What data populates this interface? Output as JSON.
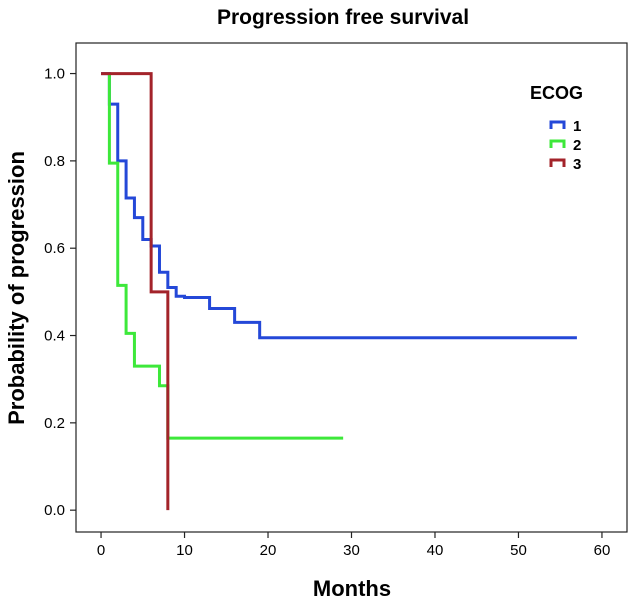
{
  "chart_data": {
    "type": "line",
    "step": true,
    "title": "Progression free survival",
    "xlabel": "Months",
    "ylabel": "Probability of progression",
    "xlim": [
      -3,
      63
    ],
    "ylim": [
      -0.05,
      1.07
    ],
    "x_ticks": [
      0,
      10,
      20,
      30,
      40,
      50,
      60
    ],
    "y_ticks": [
      0.0,
      0.2,
      0.4,
      0.6,
      0.8,
      1.0
    ],
    "y_tick_labels": [
      "0.0",
      "0.2",
      "0.4",
      "0.6",
      "0.8",
      "1.0"
    ],
    "grid": false,
    "legend": {
      "title": "ECOG",
      "position": "top-right"
    },
    "series": [
      {
        "name": "1",
        "color": "#2448d8",
        "x": [
          0,
          1,
          2,
          3,
          4,
          5,
          6,
          7,
          8,
          9,
          10,
          13,
          16,
          19,
          57
        ],
        "y": [
          1.0,
          0.93,
          0.8,
          0.715,
          0.67,
          0.62,
          0.605,
          0.545,
          0.51,
          0.49,
          0.487,
          0.462,
          0.43,
          0.395,
          0.395
        ]
      },
      {
        "name": "2",
        "color": "#3de83a",
        "x": [
          1,
          1,
          2,
          3,
          4,
          7,
          8,
          8,
          29
        ],
        "y": [
          1.0,
          0.795,
          0.515,
          0.405,
          0.33,
          0.285,
          0.285,
          0.165,
          0.165
        ]
      },
      {
        "name": "3",
        "color": "#a3232a",
        "x": [
          0,
          6,
          8,
          8
        ],
        "y": [
          1.0,
          0.5,
          0.5,
          0.0
        ]
      }
    ]
  }
}
